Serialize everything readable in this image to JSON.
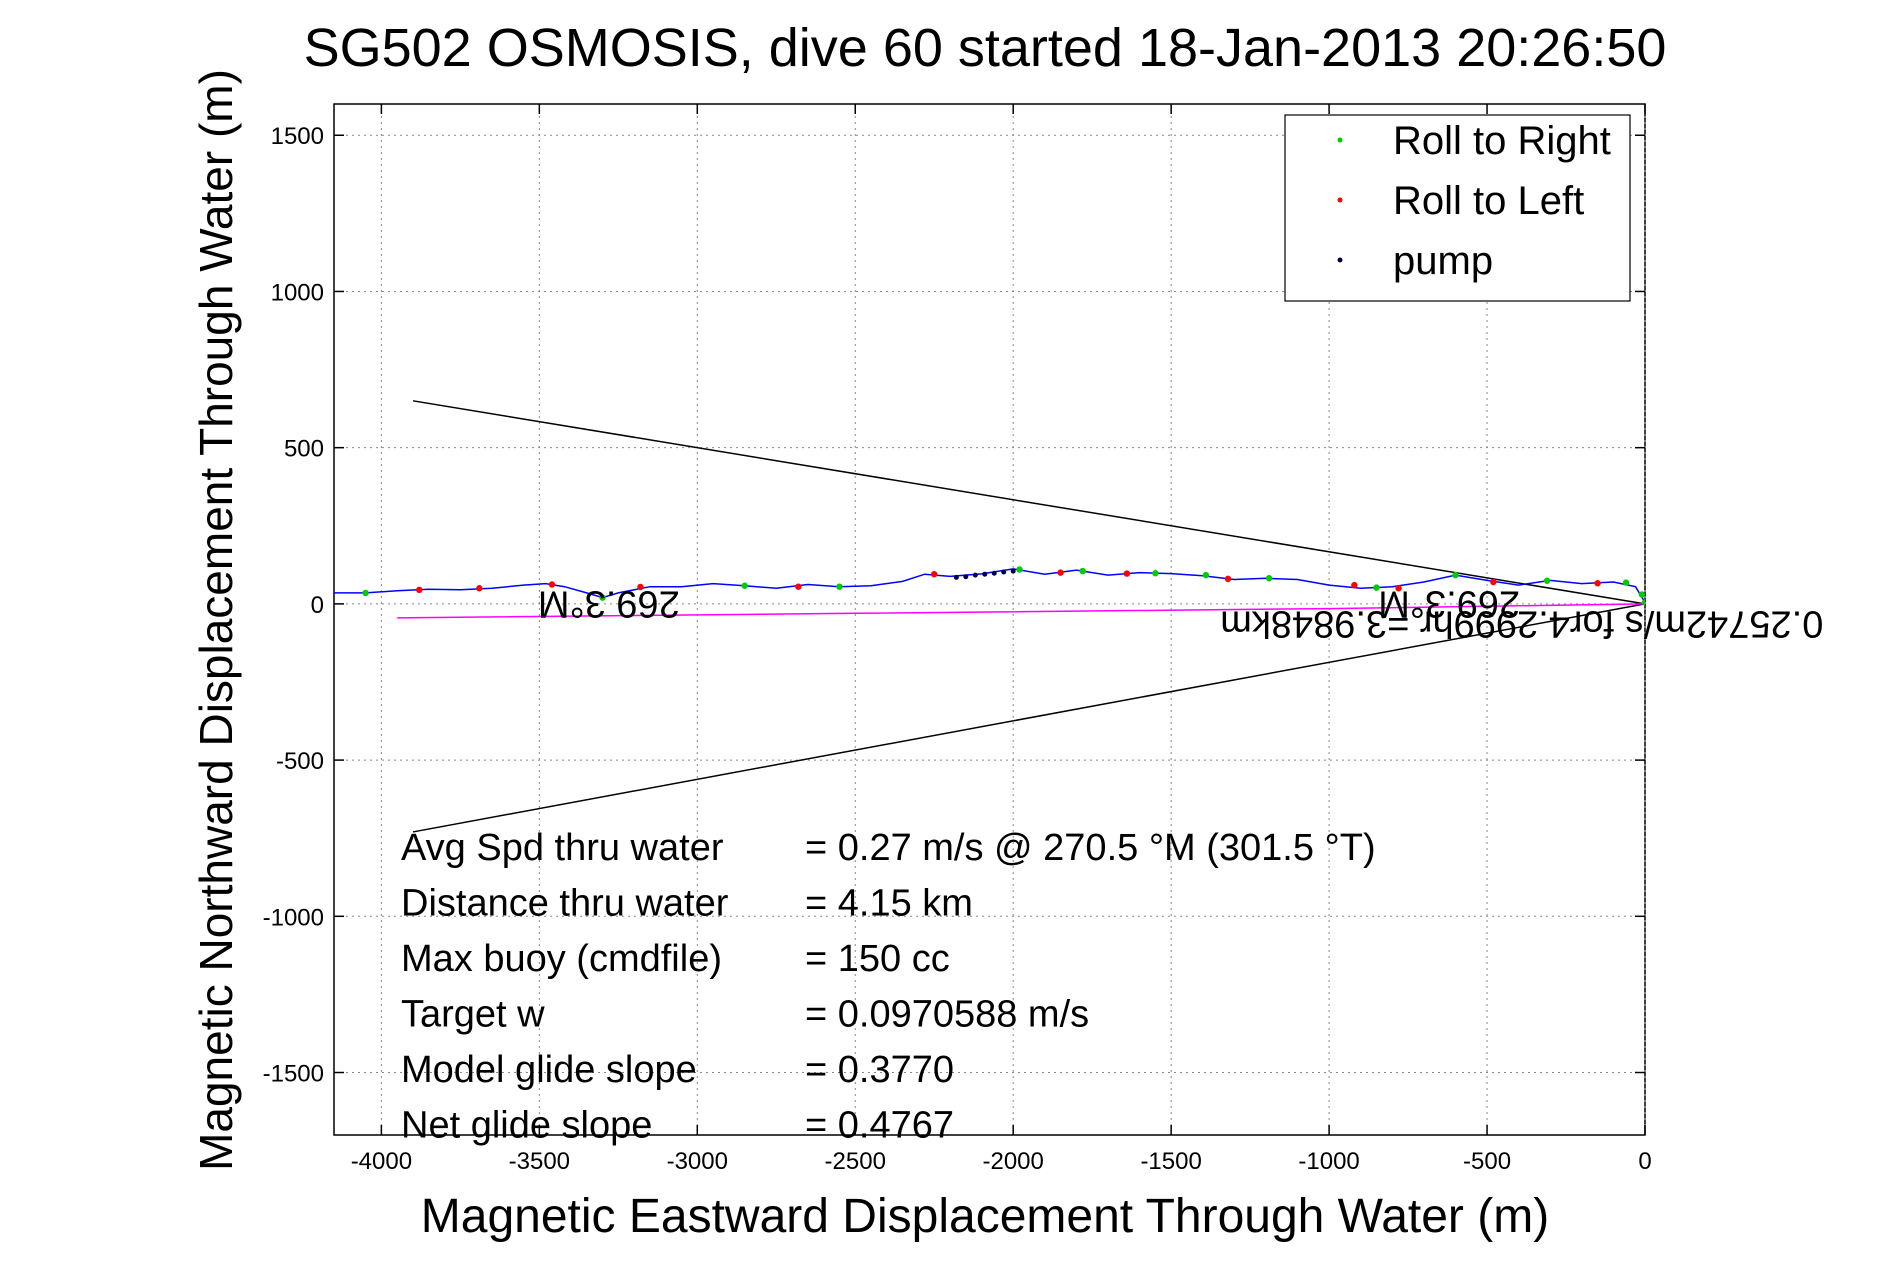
{
  "chart_data": {
    "type": "line",
    "title": "SG502 OSMOSIS, dive 60 started 18-Jan-2013 20:26:50",
    "xlabel": "Magnetic Eastward Displacement Through Water (m)",
    "ylabel": "Magnetic Northward Displacement Through Water (m)",
    "xlim": [
      -4150,
      0
    ],
    "ylim": [
      -1700,
      1600
    ],
    "xticks": [
      -4000,
      -3500,
      -3000,
      -2500,
      -2000,
      -1500,
      -1000,
      -500,
      0
    ],
    "yticks": [
      1500,
      1000,
      500,
      0,
      -500,
      -1000,
      -1500
    ],
    "grid": true,
    "legend_position": "top-right",
    "colors": {
      "track": "#0000ff",
      "current": "#ff00ff",
      "roll_right": "#00cc00",
      "roll_left": "#ff0000",
      "pump": "#00004c",
      "axes": "#000000"
    },
    "legend": [
      {
        "label": "Roll to Right",
        "color": "#00cc00"
      },
      {
        "label": "Roll to Left",
        "color": "#ff0000"
      },
      {
        "label": "pump",
        "color": "#00004c"
      }
    ],
    "series": [
      {
        "name": "",
        "kind": "track",
        "points": [
          [
            -4150,
            35
          ],
          [
            -4050,
            35
          ],
          [
            -3950,
            42
          ],
          [
            -3850,
            47
          ],
          [
            -3750,
            45
          ],
          [
            -3650,
            50
          ],
          [
            -3550,
            60
          ],
          [
            -3480,
            65
          ],
          [
            -3420,
            55
          ],
          [
            -3350,
            35
          ],
          [
            -3300,
            20
          ],
          [
            -3250,
            35
          ],
          [
            -3150,
            55
          ],
          [
            -3050,
            55
          ],
          [
            -2950,
            65
          ],
          [
            -2850,
            58
          ],
          [
            -2750,
            50
          ],
          [
            -2650,
            62
          ],
          [
            -2550,
            55
          ],
          [
            -2450,
            58
          ],
          [
            -2350,
            72
          ],
          [
            -2280,
            95
          ],
          [
            -2200,
            88
          ],
          [
            -2100,
            96
          ],
          [
            -2000,
            112
          ],
          [
            -1900,
            95
          ],
          [
            -1800,
            108
          ],
          [
            -1700,
            92
          ],
          [
            -1600,
            100
          ],
          [
            -1500,
            97
          ],
          [
            -1400,
            90
          ],
          [
            -1300,
            78
          ],
          [
            -1200,
            82
          ],
          [
            -1100,
            78
          ],
          [
            -1000,
            60
          ],
          [
            -900,
            50
          ],
          [
            -800,
            55
          ],
          [
            -700,
            70
          ],
          [
            -600,
            92
          ],
          [
            -500,
            75
          ],
          [
            -400,
            60
          ],
          [
            -300,
            75
          ],
          [
            -200,
            65
          ],
          [
            -100,
            70
          ],
          [
            -30,
            55
          ],
          [
            0,
            5
          ]
        ]
      },
      {
        "name": "",
        "kind": "current",
        "points": [
          [
            -3950,
            -45
          ],
          [
            -2500,
            -30
          ],
          [
            -1000,
            -15
          ],
          [
            0,
            0
          ]
        ]
      }
    ],
    "markers": {
      "roll_right": [
        [
          -4050,
          35
        ],
        [
          -3300,
          20
        ],
        [
          -2850,
          58
        ],
        [
          -2550,
          55
        ],
        [
          -1980,
          110
        ],
        [
          -1780,
          105
        ],
        [
          -1550,
          98
        ],
        [
          -1390,
          92
        ],
        [
          -1190,
          82
        ],
        [
          -850,
          52
        ],
        [
          -600,
          92
        ],
        [
          -310,
          74
        ],
        [
          -60,
          68
        ],
        [
          -10,
          30
        ],
        [
          0,
          5
        ]
      ],
      "roll_left": [
        [
          -3880,
          45
        ],
        [
          -3690,
          50
        ],
        [
          -3460,
          62
        ],
        [
          -3180,
          54
        ],
        [
          -2680,
          55
        ],
        [
          -2250,
          95
        ],
        [
          -1850,
          100
        ],
        [
          -1640,
          97
        ],
        [
          -1320,
          80
        ],
        [
          -920,
          60
        ],
        [
          -780,
          50
        ],
        [
          -480,
          70
        ],
        [
          -150,
          66
        ]
      ],
      "pump": [
        [
          -2180,
          85
        ],
        [
          -2150,
          87
        ],
        [
          -2120,
          92
        ],
        [
          -2090,
          95
        ],
        [
          -2060,
          98
        ],
        [
          -2030,
          102
        ],
        [
          -2000,
          105
        ]
      ]
    },
    "heading_lines": [
      [
        [
          -3900,
          650
        ],
        [
          0,
          0
        ]
      ],
      [
        [
          -3900,
          -730
        ],
        [
          0,
          0
        ]
      ]
    ],
    "annotations": [
      {
        "text": "269.3°M",
        "x": -3280,
        "y": 40
      },
      {
        "text": "269.3°M",
        "x": -620,
        "y": 40
      },
      {
        "text": "0.25742m/s for4.2999hr =3.9848km",
        "x": -390,
        "y": -25
      }
    ],
    "stats": [
      {
        "label": "Avg Spd thru water",
        "value": "=  0.27 m/s @ 270.5 °M (301.5 °T)"
      },
      {
        "label": "Distance thru water",
        "value": "=  4.15 km"
      },
      {
        "label": "Max buoy (cmdfile)",
        "value": "= 150 cc"
      },
      {
        "label": "Target w",
        "value": "= 0.0970588 m/s"
      },
      {
        "label": "Model glide slope",
        "value": "= 0.3770"
      },
      {
        "label": "Net glide slope",
        "value": "= 0.4767"
      }
    ]
  }
}
